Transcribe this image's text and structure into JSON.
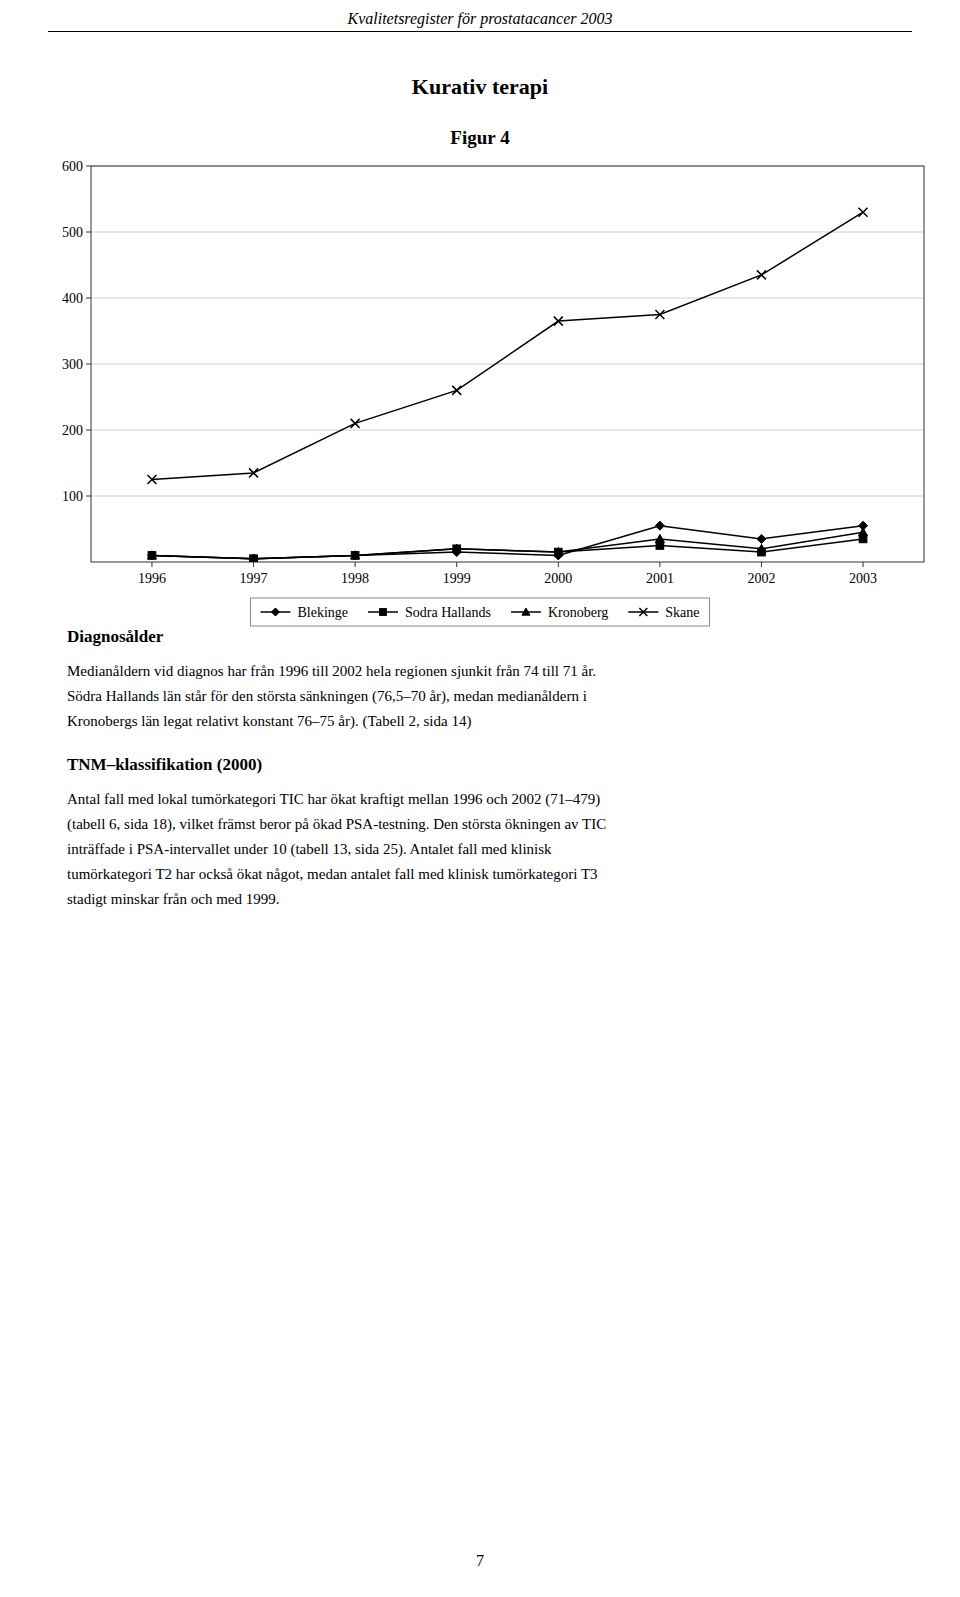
{
  "header": "Kvalitetsregister för prostatacancer 2003",
  "chart_data": {
    "type": "line",
    "title": "Kurativ terapi",
    "subtitle": "Figur 4",
    "x": [
      1996,
      1997,
      1998,
      1999,
      2000,
      2001,
      2002,
      2003
    ],
    "series": [
      {
        "name": "Blekinge",
        "color": "#000000",
        "marker": "diamond",
        "values": [
          10,
          5,
          10,
          15,
          10,
          55,
          35,
          55
        ]
      },
      {
        "name": "Sodra Hallands",
        "color": "#000000",
        "marker": "square",
        "values": [
          10,
          5,
          10,
          20,
          15,
          25,
          15,
          35
        ]
      },
      {
        "name": "Kronoberg",
        "color": "#000000",
        "marker": "triangle",
        "values": [
          10,
          5,
          10,
          20,
          15,
          35,
          20,
          45
        ]
      },
      {
        "name": "Skane",
        "color": "#000000",
        "marker": "x",
        "values": [
          125,
          135,
          210,
          260,
          365,
          375,
          435,
          530
        ]
      }
    ],
    "xlim": [
      1995.4,
      2003.6
    ],
    "xticks": [
      1996,
      1997,
      1998,
      1999,
      2000,
      2001,
      2002,
      2003
    ],
    "ylim": [
      0,
      600
    ],
    "yticks": [
      100,
      200,
      300,
      400,
      500,
      600
    ],
    "grid": true,
    "legend": "bottom"
  },
  "sections": [
    {
      "heading": "Diagnosålder",
      "lines": [
        "Medianåldern vid diagnos har från 1996 till 2002 hela regionen sjunkit från 74 till 71 år.",
        "Södra Hallands län står för den största sänkningen (76,5–70 år), medan medianåldern i",
        "Kronobergs län legat relativt konstant 76–75 år). (Tabell 2, sida 14)"
      ]
    },
    {
      "heading": "TNM–klassifikation (2000)",
      "lines": [
        "Antal fall med lokal tumörkategori TIC har ökat kraftigt mellan 1996 och 2002 (71–479)",
        "(tabell 6, sida 18), vilket främst beror på ökad PSA-testning. Den största ökningen av TIC",
        "inträffade i PSA-intervallet under 10 (tabell 13, sida 25). Antalet fall med klinisk",
        "tumörkategori T2 har också ökat något, medan antalet fall med klinisk tumörkategori T3",
        "stadigt minskar från och med 1999."
      ]
    }
  ],
  "page_number": "7"
}
